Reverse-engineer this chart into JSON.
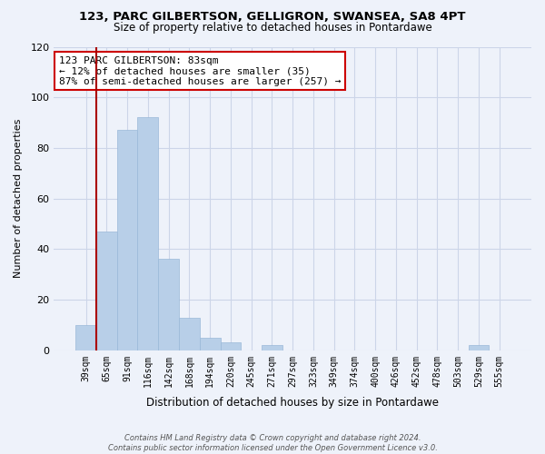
{
  "title": "123, PARC GILBERTSON, GELLIGRON, SWANSEA, SA8 4PT",
  "subtitle": "Size of property relative to detached houses in Pontardawe",
  "xlabel": "Distribution of detached houses by size in Pontardawe",
  "ylabel": "Number of detached properties",
  "bar_labels": [
    "39sqm",
    "65sqm",
    "91sqm",
    "116sqm",
    "142sqm",
    "168sqm",
    "194sqm",
    "220sqm",
    "245sqm",
    "271sqm",
    "297sqm",
    "323sqm",
    "349sqm",
    "374sqm",
    "400sqm",
    "426sqm",
    "452sqm",
    "478sqm",
    "503sqm",
    "529sqm",
    "555sqm"
  ],
  "bar_values": [
    10,
    47,
    87,
    92,
    36,
    13,
    5,
    3,
    0,
    2,
    0,
    0,
    0,
    0,
    0,
    0,
    0,
    0,
    0,
    2,
    0
  ],
  "bar_color": "#b8cfe8",
  "bar_edge_color": "#9ab8d8",
  "vline_x_index": 0.5,
  "vline_color": "#aa0000",
  "ylim": [
    0,
    120
  ],
  "yticks": [
    0,
    20,
    40,
    60,
    80,
    100,
    120
  ],
  "annotation_line1": "123 PARC GILBERTSON: 83sqm",
  "annotation_line2": "← 12% of detached houses are smaller (35)",
  "annotation_line3": "87% of semi-detached houses are larger (257) →",
  "annotation_box_color": "#ffffff",
  "annotation_box_edge": "#cc0000",
  "footer_line1": "Contains HM Land Registry data © Crown copyright and database right 2024.",
  "footer_line2": "Contains public sector information licensed under the Open Government Licence v3.0.",
  "grid_color": "#ccd5e8",
  "background_color": "#eef2fa"
}
